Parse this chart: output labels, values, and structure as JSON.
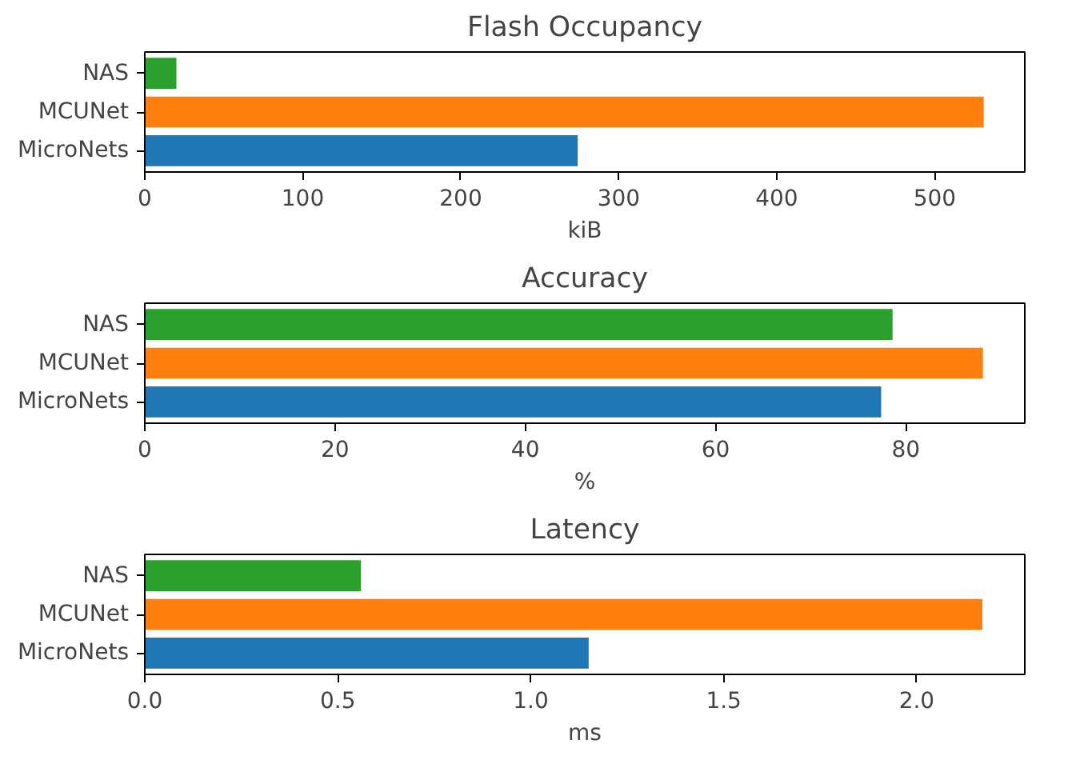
{
  "chart_data": [
    {
      "type": "bar",
      "orientation": "horizontal",
      "title": "Flash Occupancy",
      "xlabel": "kiB",
      "categories": [
        "NAS",
        "MCUNet",
        "MicroNets"
      ],
      "values": [
        20,
        531,
        274
      ],
      "colors": [
        "#2ca02c",
        "#ff7f0e",
        "#1f77b4"
      ],
      "xlim": [
        0,
        557
      ],
      "xticks": [
        0,
        100,
        200,
        300,
        400,
        500
      ]
    },
    {
      "type": "bar",
      "orientation": "horizontal",
      "title": "Accuracy",
      "xlabel": "%",
      "categories": [
        "NAS",
        "MCUNet",
        "MicroNets"
      ],
      "values": [
        78.6,
        88.1,
        77.4
      ],
      "colors": [
        "#2ca02c",
        "#ff7f0e",
        "#1f77b4"
      ],
      "xlim": [
        0,
        92.5
      ],
      "xticks": [
        0,
        20,
        40,
        60,
        80
      ]
    },
    {
      "type": "bar",
      "orientation": "horizontal",
      "title": "Latency",
      "xlabel": "ms",
      "categories": [
        "NAS",
        "MCUNet",
        "MicroNets"
      ],
      "values": [
        0.56,
        2.17,
        1.15
      ],
      "colors": [
        "#2ca02c",
        "#ff7f0e",
        "#1f77b4"
      ],
      "xlim": [
        0,
        2.28
      ],
      "xticks": [
        {
          "value": 0,
          "label": "0.0"
        },
        0.5,
        {
          "value": 1,
          "label": "1.0"
        },
        1.5,
        {
          "value": 2,
          "label": "2.0"
        }
      ]
    }
  ]
}
